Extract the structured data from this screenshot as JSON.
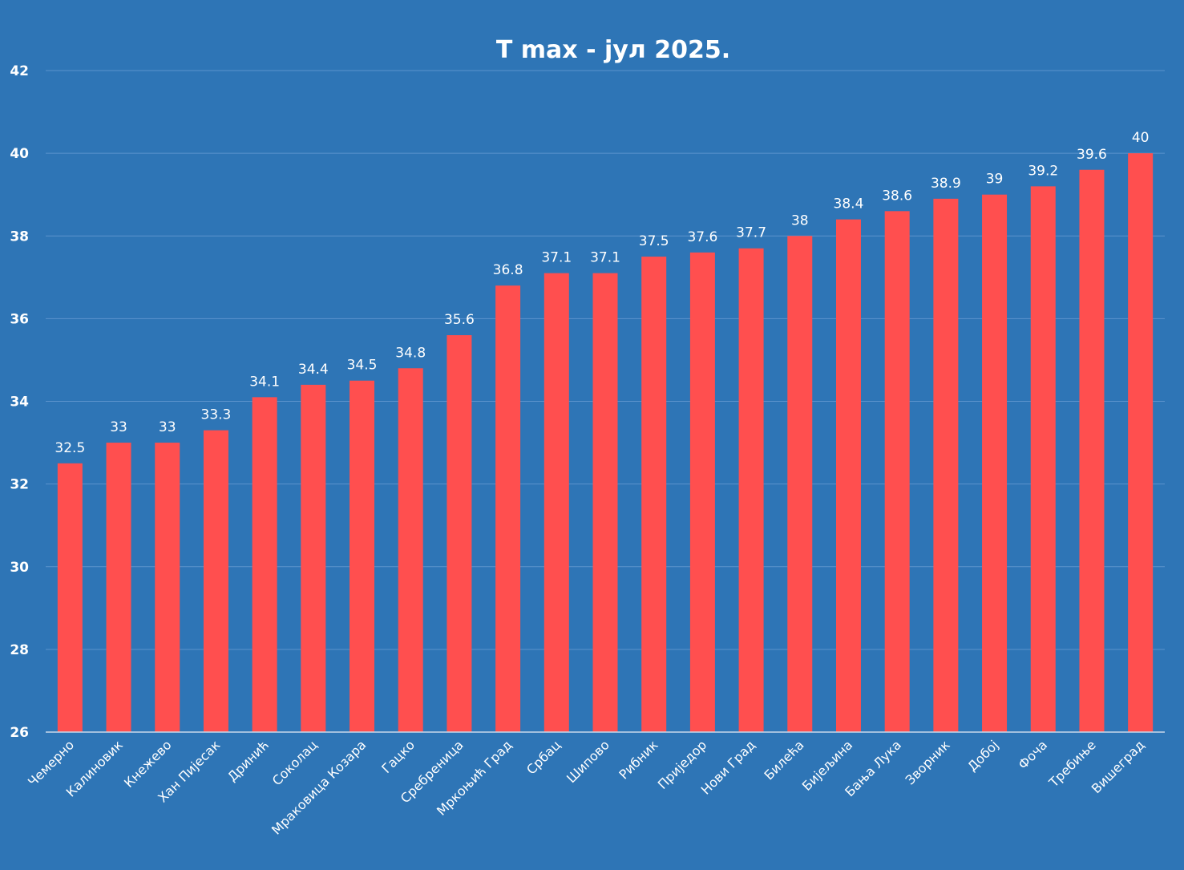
{
  "chart_data": {
    "type": "bar",
    "title": "T max - јул 2025.",
    "xlabel": "",
    "ylabel": "",
    "ylim": [
      26,
      42
    ],
    "yticks": [
      26,
      28,
      30,
      32,
      34,
      36,
      38,
      40,
      42
    ],
    "grid": true,
    "legend": "none",
    "categories": [
      "Чемерно",
      "Калиновик",
      "Кнежево",
      "Хан Пијесак",
      "Дринић",
      "Соколац",
      "Мраковица Козара",
      "Гацко",
      "Сребреница",
      "Мркоњић Град",
      "Србац",
      "Шипово",
      "Рибник",
      "Приједор",
      "Нови Град",
      "Билећа",
      "Бијељина",
      "Бања Лука",
      "Зворник",
      "Добој",
      "Фоча",
      "Требиње",
      "Вишеград"
    ],
    "values": [
      32.5,
      33,
      33,
      33.3,
      34.1,
      34.4,
      34.5,
      34.8,
      35.6,
      36.8,
      37.1,
      37.1,
      37.5,
      37.6,
      37.7,
      38,
      38.4,
      38.6,
      38.9,
      39,
      39.2,
      39.6,
      40
    ],
    "colors": {
      "background": "#2e75b6",
      "bar": "#ff4f4f",
      "grid": "#5b93cc",
      "text": "#ffffff"
    }
  }
}
